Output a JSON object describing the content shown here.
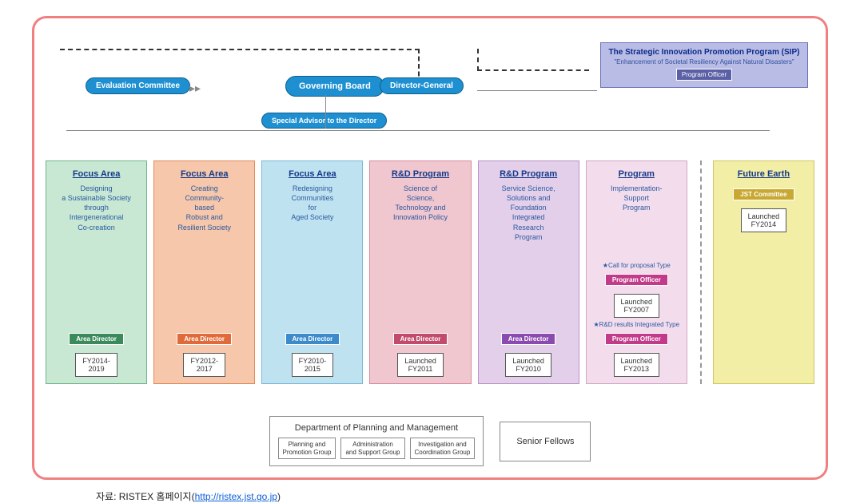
{
  "layout": {
    "frame_border_color": "#f08080",
    "frame_border_radius": 18,
    "background": "#ffffff"
  },
  "colors": {
    "pill_bg": "#1e90d2",
    "pill_border": "#0b5f8a",
    "sip_bg": "#b9bce4",
    "sip_border": "#6a6fb8",
    "link_blue": "#0b5fd6"
  },
  "top": {
    "evaluation": "Evaluation Committee",
    "governing": "Governing Board",
    "director_general": "Director-General",
    "special_advisor": "Special Advisor to the Director",
    "sip": {
      "title": "The Strategic Innovation Promotion Program (SIP)",
      "subtitle": "\"Enhancement of Societal Resiliency Against Natural Disasters\"",
      "role": "Program Officer"
    }
  },
  "cards": [
    {
      "id": "focus-intergenerational",
      "title": "Focus Area",
      "desc": "Designing\na Sustainable Society\nthrough\nIntergenerational\nCo-creation",
      "role": "Area Director",
      "role_bg": "#3a8a5c",
      "date": "FY2014-\n2019",
      "bg": "#c8e8d4",
      "border": "#6fb58a"
    },
    {
      "id": "focus-community",
      "title": "Focus Area",
      "desc": "Creating\nCommunity-\nbased\nRobust and\nResilient Society",
      "role": "Area Director",
      "role_bg": "#e06a3a",
      "date": "FY2012-\n2017",
      "bg": "#f6c7aa",
      "border": "#e28a5a"
    },
    {
      "id": "focus-aged",
      "title": "Focus Area",
      "desc": "Redesigning\nCommunities\nfor\nAged Society",
      "role": "Area Director",
      "role_bg": "#3a8acc",
      "date": "FY2010-\n2015",
      "bg": "#bfe2f0",
      "border": "#7ab8d8"
    },
    {
      "id": "rd-sti-policy",
      "title": "R&D Program",
      "desc": "Science of\nScience,\nTechnology and\nInnovation Policy",
      "role": "Area Director",
      "role_bg": "#c24a6a",
      "date": "Launched\nFY2011",
      "bg": "#f0c6cf",
      "border": "#d88aa0"
    },
    {
      "id": "rd-service-science",
      "title": "R&D Program",
      "desc": "Service Science,\nSolutions and\nFoundation\nIntegrated\nResearch\nProgram",
      "role": "Area Director",
      "role_bg": "#8a4ab0",
      "date": "Launched\nFY2010",
      "bg": "#e3cfe9",
      "border": "#b892c8"
    },
    {
      "id": "program-impl-support",
      "title": "Program",
      "desc": "Implementation-\nSupport\nProgram",
      "extras": [
        {
          "type": "star",
          "text": "★Call for\nproposal Type"
        },
        {
          "type": "role",
          "text": "Program Officer",
          "bg": "#c23a8a"
        },
        {
          "type": "date",
          "text": "Launched\nFY2007"
        },
        {
          "type": "star",
          "text": "★R&D results\nIntegrated Type"
        },
        {
          "type": "role",
          "text": "Program Officer",
          "bg": "#c23a8a"
        },
        {
          "type": "date",
          "text": "Launched\nFY2013"
        }
      ],
      "bg": "#f3dcec",
      "border": "#d0a8c4"
    }
  ],
  "future_earth": {
    "id": "future-earth",
    "title": "Future Earth",
    "role": "JST Committee",
    "role_bg": "#c8a830",
    "date": "Launched\nFY2014",
    "bg": "#f3eea6",
    "border": "#cfc662"
  },
  "bottom": {
    "dept_title": "Department of Planning and Management",
    "groups": [
      "Planning and\nPromotion Group",
      "Administration\nand Support Group",
      "Investigation and\nCoordination Group"
    ],
    "senior_fellows": "Senior Fellows"
  },
  "caption": {
    "prefix": "자료: RISTEX 홈페이지(",
    "link": "http://ristex.jst.go.jp",
    "suffix": ")"
  }
}
